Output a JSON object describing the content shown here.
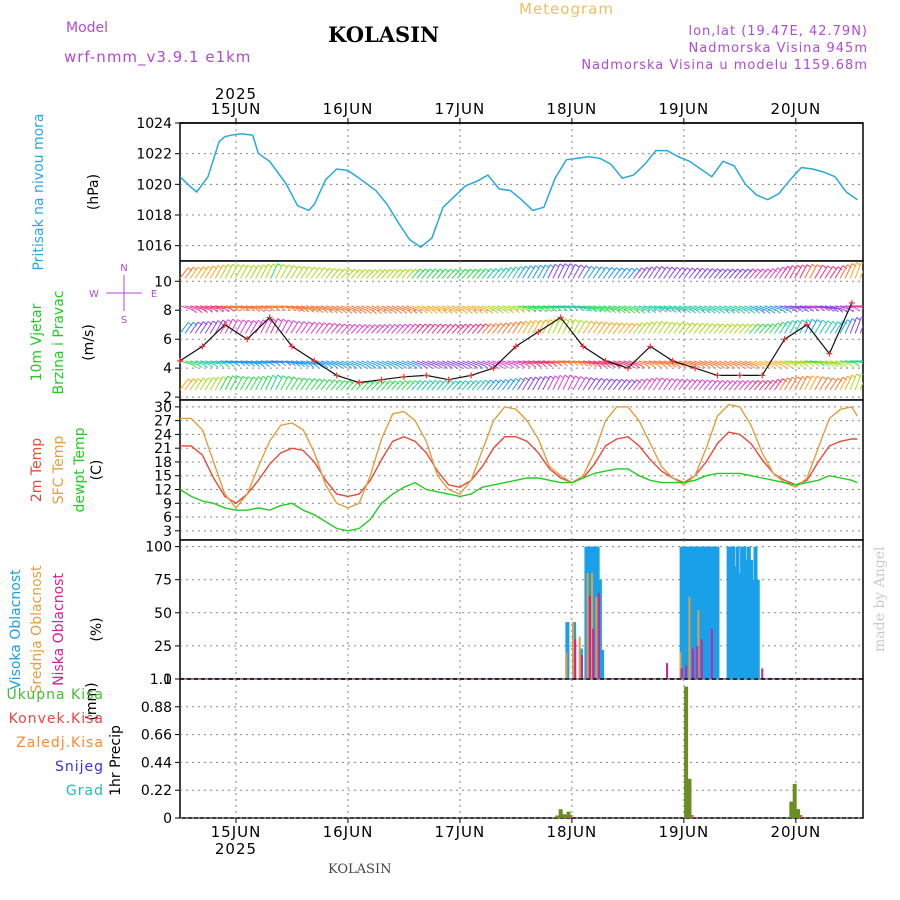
{
  "header": {
    "model_label": "Model",
    "model_name": "wrf-nmm_v3.9.1 e1km",
    "station": "KOLASIN",
    "product": "Meteogram",
    "coords": "lon,lat (19.47E, 42.79N)",
    "elevation": "Nadmorska Visina 945m",
    "model_elevation": "Nadmorska Visina u modelu 1159.68m"
  },
  "credit": "made by Angel",
  "footer": "KOLASIN",
  "colors": {
    "pressure": "#29a8e0",
    "temp2m": "#e84a3a",
    "sfc": "#e0a040",
    "dewpt": "#22cc22",
    "high_cloud": "#1aa0e8",
    "mid_cloud": "#e0a040",
    "low_cloud": "#d0209a",
    "precip_total": "#44bb33",
    "precip_conv": "#ee4444",
    "precip_strat": "#ff8833",
    "snow": "#3333dd",
    "hail": "#22bbbb",
    "purple_text": "#b04ad8"
  },
  "chart_data": [
    {
      "type": "line",
      "panel": "pressure",
      "ylabel": [
        "Pritisak na nivou mora",
        "(hPa)"
      ],
      "yticks": [
        1016,
        1018,
        1020,
        1022,
        1024
      ],
      "ylim": [
        1015,
        1024
      ],
      "xlim": [
        0,
        6.1
      ],
      "top_year": "2025",
      "top_days": [
        "15JUN",
        "16JUN",
        "17JUN",
        "18JUN",
        "19JUN",
        "20JUN"
      ],
      "day_x": [
        0.5,
        1.5,
        2.5,
        3.5,
        4.5,
        5.5
      ],
      "x": [
        0.0,
        0.1,
        0.15,
        0.25,
        0.35,
        0.4,
        0.45,
        0.55,
        0.65,
        0.7,
        0.8,
        0.95,
        1.05,
        1.15,
        1.2,
        1.3,
        1.4,
        1.5,
        1.6,
        1.75,
        1.85,
        1.95,
        2.05,
        2.15,
        2.25,
        2.35,
        2.45,
        2.55,
        2.65,
        2.75,
        2.85,
        2.95,
        3.05,
        3.15,
        3.25,
        3.35,
        3.45,
        3.55,
        3.65,
        3.75,
        3.85,
        3.95,
        4.05,
        4.15,
        4.25,
        4.35,
        4.45,
        4.55,
        4.65,
        4.75,
        4.85,
        4.95,
        5.05,
        5.15,
        5.25,
        5.35,
        5.45,
        5.55,
        5.65,
        5.75,
        5.85,
        5.95,
        6.05
      ],
      "series": [
        {
          "values": [
            1020.5,
            1019.8,
            1019.5,
            1020.5,
            1022.8,
            1023.1,
            1023.2,
            1023.3,
            1023.2,
            1022.0,
            1021.5,
            1020.0,
            1018.6,
            1018.3,
            1018.7,
            1020.3,
            1021.0,
            1020.9,
            1020.4,
            1019.6,
            1018.7,
            1017.5,
            1016.4,
            1015.9,
            1016.5,
            1018.5,
            1019.2,
            1019.9,
            1020.2,
            1020.6,
            1019.7,
            1019.6,
            1019.0,
            1018.3,
            1018.5,
            1020.4,
            1021.6,
            1021.7,
            1021.8,
            1021.7,
            1021.3,
            1020.4,
            1020.6,
            1021.3,
            1022.2,
            1022.2,
            1021.8,
            1021.5,
            1021.0,
            1020.5,
            1021.5,
            1021.2,
            1020.0,
            1019.3,
            1019.0,
            1019.4,
            1020.3,
            1021.1,
            1021.0,
            1020.8,
            1020.5,
            1019.5,
            1019.0
          ]
        }
      ]
    },
    {
      "type": "scatter",
      "panel": "wind",
      "ylabel": [
        "10m Vjetar",
        "Brzina i Pravac",
        "(m/s)"
      ],
      "compass": [
        "N",
        "S",
        "W",
        "E"
      ],
      "yticks": [
        2,
        4,
        6,
        8,
        10
      ],
      "ylim": [
        1.8,
        11.4
      ],
      "x": [
        0.0,
        0.2,
        0.4,
        0.6,
        0.8,
        1.0,
        1.2,
        1.4,
        1.6,
        1.8,
        2.0,
        2.2,
        2.4,
        2.6,
        2.8,
        3.0,
        3.2,
        3.4,
        3.6,
        3.8,
        4.0,
        4.2,
        4.4,
        4.6,
        4.8,
        5.0,
        5.2,
        5.4,
        5.6,
        5.8,
        6.0
      ],
      "series": [
        {
          "name": "speed",
          "values": [
            4.5,
            5.5,
            7.0,
            6.0,
            7.5,
            5.5,
            4.5,
            3.5,
            3.0,
            3.2,
            3.4,
            3.5,
            3.2,
            3.5,
            4.0,
            5.5,
            6.5,
            7.5,
            5.5,
            4.5,
            4.0,
            5.5,
            4.5,
            4.0,
            3.5,
            3.5,
            3.5,
            6.0,
            7.0,
            5.0,
            8.5
          ]
        }
      ]
    },
    {
      "type": "line",
      "panel": "temperature",
      "ylabel": [
        "2m Temp",
        "SFC Temp",
        "dewpt Temp",
        "(C)"
      ],
      "yticks": [
        3,
        6,
        9,
        12,
        15,
        18,
        21,
        24,
        27,
        30
      ],
      "ylim": [
        1,
        31.5
      ],
      "x": [
        0.0,
        0.1,
        0.2,
        0.3,
        0.4,
        0.5,
        0.6,
        0.7,
        0.8,
        0.9,
        1.0,
        1.1,
        1.2,
        1.3,
        1.4,
        1.5,
        1.6,
        1.7,
        1.8,
        1.9,
        2.0,
        2.1,
        2.2,
        2.3,
        2.4,
        2.5,
        2.6,
        2.7,
        2.8,
        2.9,
        3.0,
        3.1,
        3.2,
        3.3,
        3.4,
        3.5,
        3.6,
        3.7,
        3.8,
        3.9,
        4.0,
        4.1,
        4.2,
        4.3,
        4.4,
        4.5,
        4.6,
        4.7,
        4.8,
        4.9,
        5.0,
        5.1,
        5.2,
        5.3,
        5.4,
        5.5,
        5.6,
        5.7,
        5.8,
        5.9,
        6.0,
        6.05
      ],
      "series": [
        {
          "name": "2m Temp",
          "values": [
            21.5,
            21.5,
            19.5,
            14.5,
            10.5,
            9.0,
            11.0,
            14.0,
            17.5,
            20.0,
            21.0,
            20.5,
            18.0,
            14.0,
            11.0,
            10.5,
            11.0,
            14.0,
            18.5,
            22.5,
            23.5,
            22.5,
            20.0,
            16.0,
            13.0,
            12.5,
            14.0,
            17.0,
            21.0,
            23.5,
            23.5,
            22.5,
            20.0,
            16.5,
            14.5,
            13.5,
            14.5,
            17.5,
            21.5,
            23.0,
            23.5,
            21.5,
            18.5,
            16.0,
            14.5,
            13.5,
            15.0,
            18.0,
            22.0,
            24.5,
            24.0,
            22.0,
            18.5,
            15.5,
            14.0,
            13.0,
            14.0,
            18.0,
            21.5,
            22.5,
            23.0,
            23.0
          ]
        },
        {
          "name": "SFC Temp",
          "values": [
            27.5,
            27.5,
            25.0,
            18.0,
            11.0,
            8.0,
            11.0,
            17.0,
            22.5,
            26.0,
            26.5,
            25.0,
            20.0,
            13.0,
            9.0,
            8.0,
            9.0,
            15.0,
            23.0,
            28.5,
            29.0,
            27.0,
            22.5,
            15.0,
            12.0,
            11.0,
            14.0,
            20.5,
            27.0,
            30.0,
            29.5,
            27.0,
            23.0,
            17.0,
            15.0,
            13.5,
            15.0,
            20.0,
            27.0,
            30.0,
            30.0,
            27.0,
            22.0,
            17.0,
            14.5,
            13.0,
            15.0,
            21.0,
            28.0,
            30.5,
            30.0,
            26.0,
            20.0,
            15.5,
            13.5,
            12.5,
            14.5,
            21.0,
            27.5,
            29.5,
            30.0,
            28.0
          ]
        },
        {
          "name": "dewpt Temp",
          "values": [
            12.0,
            10.5,
            9.5,
            9.0,
            8.0,
            7.5,
            7.5,
            8.0,
            7.5,
            8.5,
            9.0,
            7.5,
            6.5,
            5.0,
            3.5,
            3.0,
            3.5,
            5.5,
            9.0,
            11.0,
            12.5,
            13.5,
            12.0,
            11.5,
            11.0,
            10.5,
            11.0,
            12.5,
            13.0,
            13.5,
            14.0,
            14.5,
            14.5,
            14.0,
            13.5,
            13.5,
            14.5,
            15.5,
            16.0,
            16.5,
            16.5,
            15.0,
            14.0,
            13.5,
            13.5,
            13.5,
            14.0,
            15.0,
            15.5,
            15.5,
            15.5,
            15.0,
            14.5,
            14.0,
            13.5,
            13.0,
            13.5,
            14.0,
            15.0,
            14.5,
            14.0,
            13.5
          ]
        }
      ]
    },
    {
      "type": "bar",
      "panel": "cloud",
      "ylabel": [
        "Visoka Oblacnost",
        "Srednja Oblacnost",
        "Niska Oblacnost",
        "(%)"
      ],
      "yticks": [
        0,
        25,
        50,
        75,
        100
      ],
      "ylim": [
        0,
        105
      ],
      "series": [
        {
          "name": "Visoka Oblacnost",
          "x": [
            3.46,
            3.52,
            3.58,
            3.63,
            3.65,
            3.67,
            3.69,
            3.71,
            3.73,
            3.75,
            3.77,
            4.48,
            4.5,
            4.52,
            4.54,
            4.56,
            4.58,
            4.6,
            4.62,
            4.64,
            4.66,
            4.68,
            4.7,
            4.72,
            4.74,
            4.76,
            4.78,
            4.8,
            4.9,
            4.92,
            4.94,
            4.96,
            4.98,
            5.0,
            5.02,
            5.04,
            5.06,
            5.08,
            5.1,
            5.12,
            5.14,
            5.16
          ],
          "values": [
            43,
            43,
            23,
            100,
            100,
            100,
            100,
            100,
            100,
            75,
            22,
            100,
            100,
            100,
            100,
            100,
            100,
            100,
            100,
            100,
            100,
            100,
            100,
            100,
            100,
            100,
            100,
            100,
            100,
            100,
            100,
            85,
            100,
            80,
            100,
            100,
            90,
            100,
            90,
            75,
            100,
            75
          ]
        },
        {
          "name": "Srednja Oblacnost",
          "x": [
            3.45,
            3.51,
            3.57,
            3.64,
            3.68,
            3.72,
            4.47,
            4.55,
            4.63
          ],
          "values": [
            20,
            43,
            32,
            80,
            80,
            62,
            20,
            62,
            52
          ]
        },
        {
          "name": "Niska Oblacnost",
          "x": [
            3.53,
            3.59,
            3.66,
            3.69,
            3.74,
            3.78,
            3.8,
            3.83,
            3.86,
            3.88,
            4.35,
            4.48,
            4.52,
            4.58,
            4.62,
            4.66,
            4.75,
            5.2
          ],
          "values": [
            30,
            18,
            63,
            38,
            65,
            0,
            0,
            0,
            0,
            0,
            12,
            8,
            10,
            23,
            25,
            30,
            38,
            8
          ]
        }
      ]
    },
    {
      "type": "bar",
      "panel": "precip",
      "ylabel": [
        "1hr Precip",
        "(mm)"
      ],
      "legend": [
        "Ukupna Kisa",
        "Konvek.Kisa",
        "Zaledj.Kisa",
        "Snijeg",
        "Grad"
      ],
      "yticks": [
        0,
        0.22,
        0.44,
        0.66,
        0.88,
        1.1
      ],
      "ylim": [
        0,
        1.1
      ],
      "bottom_days": [
        "15JUN",
        "16JUN",
        "17JUN",
        "18JUN",
        "19JUN",
        "20JUN"
      ],
      "bottom_year": "2025",
      "series": [
        {
          "name": "Ukupna Kisa",
          "x": [
            3.37,
            3.4,
            3.43,
            3.47,
            4.52,
            4.55,
            5.46,
            5.49,
            5.52
          ],
          "values": [
            0.02,
            0.07,
            0.03,
            0.05,
            1.04,
            0.31,
            0.13,
            0.27,
            0.07
          ]
        }
      ]
    }
  ]
}
